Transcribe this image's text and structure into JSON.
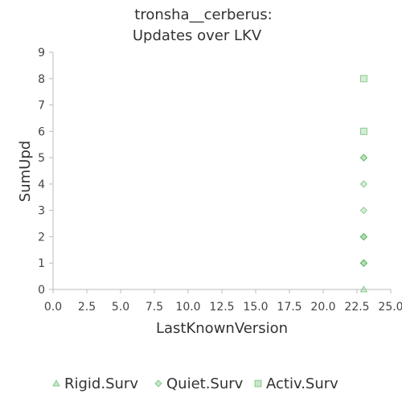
{
  "chart_data": {
    "type": "scatter",
    "title": [
      "tronsha__cerberus:",
      "Updates over LKV"
    ],
    "xlabel": "LastKnownVersion",
    "ylabel": "SumUpd",
    "xlim": [
      0,
      25
    ],
    "ylim": [
      0,
      9
    ],
    "x_ticks": [
      "0.0",
      "2.5",
      "5.0",
      "7.5",
      "10.0",
      "12.5",
      "15.0",
      "17.5",
      "20.0",
      "22.5",
      "25.0"
    ],
    "y_ticks": [
      "0",
      "1",
      "2",
      "3",
      "4",
      "5",
      "6",
      "7",
      "8",
      "9"
    ],
    "grid": false,
    "legend_position": "bottom",
    "series": [
      {
        "name": "Rigid.Surv",
        "marker": "triangle",
        "points": [
          [
            23,
            0
          ]
        ]
      },
      {
        "name": "Quiet.Surv",
        "marker": "diamond",
        "points": [
          [
            23,
            1
          ],
          [
            23,
            1
          ],
          [
            23,
            1
          ],
          [
            23,
            2
          ],
          [
            23,
            2
          ],
          [
            23,
            2
          ],
          [
            23,
            3
          ],
          [
            23,
            4
          ],
          [
            23,
            5
          ],
          [
            23,
            5
          ]
        ]
      },
      {
        "name": "Activ.Surv",
        "marker": "square",
        "points": [
          [
            23,
            6
          ],
          [
            23,
            8
          ]
        ]
      }
    ],
    "colors": {
      "stroke": "#4caf50",
      "fill": "#a5d6a7",
      "axis": "#bbbbbb"
    }
  }
}
